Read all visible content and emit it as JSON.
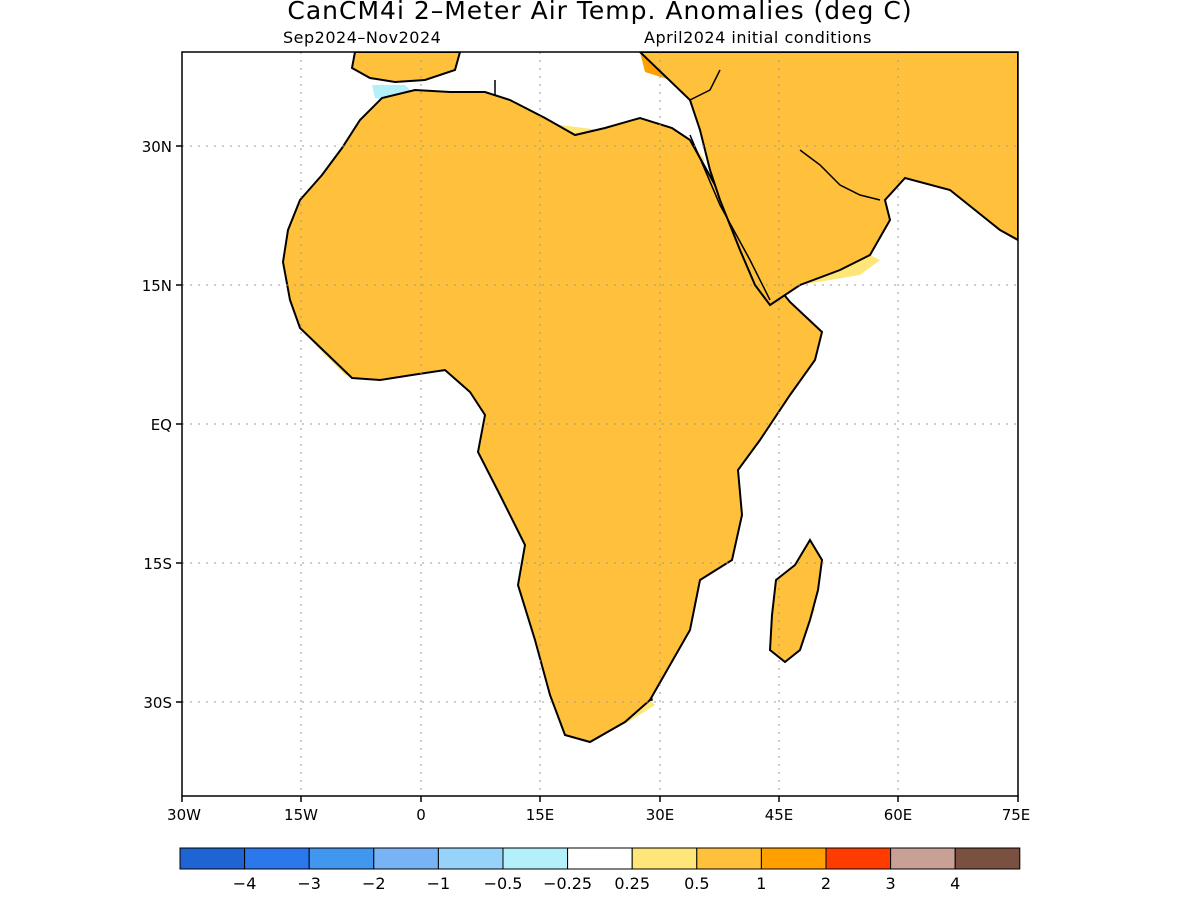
{
  "title": "CanCM4i 2–Meter Air Temp. Anomalies (deg C)",
  "subtitle_left": "Sep2024–Nov2024",
  "subtitle_right": "April2024 initial conditions",
  "axes": {
    "lat_labels": [
      "30N",
      "15N",
      "EQ",
      "15S",
      "30S"
    ],
    "lon_labels": [
      "30W",
      "15W",
      "0",
      "15E",
      "30E",
      "45E",
      "60E",
      "75E"
    ]
  },
  "colorbar": {
    "colors": [
      "#1e64d2",
      "#2a78eb",
      "#4196f0",
      "#78b4f5",
      "#96d2fa",
      "#b4f0fa",
      "#ffffff",
      "#ffe678",
      "#ffc03c",
      "#ffa000",
      "#ff3c00",
      "#c8a096",
      "#7a5040"
    ],
    "labels": [
      "−4",
      "−3",
      "−2",
      "−1",
      "−0.5",
      "−0.25",
      "0.25",
      "0.5",
      "1",
      "2",
      "3",
      "4"
    ]
  },
  "fill_colors": {
    "land_base": "#ffc03c",
    "light": "#ffe678",
    "strong": "#ffa000",
    "neutral": "#ffffff",
    "cool_light": "#b4f0fa",
    "cool": "#96d2fa",
    "cool_strong": "#78b4f5"
  }
}
